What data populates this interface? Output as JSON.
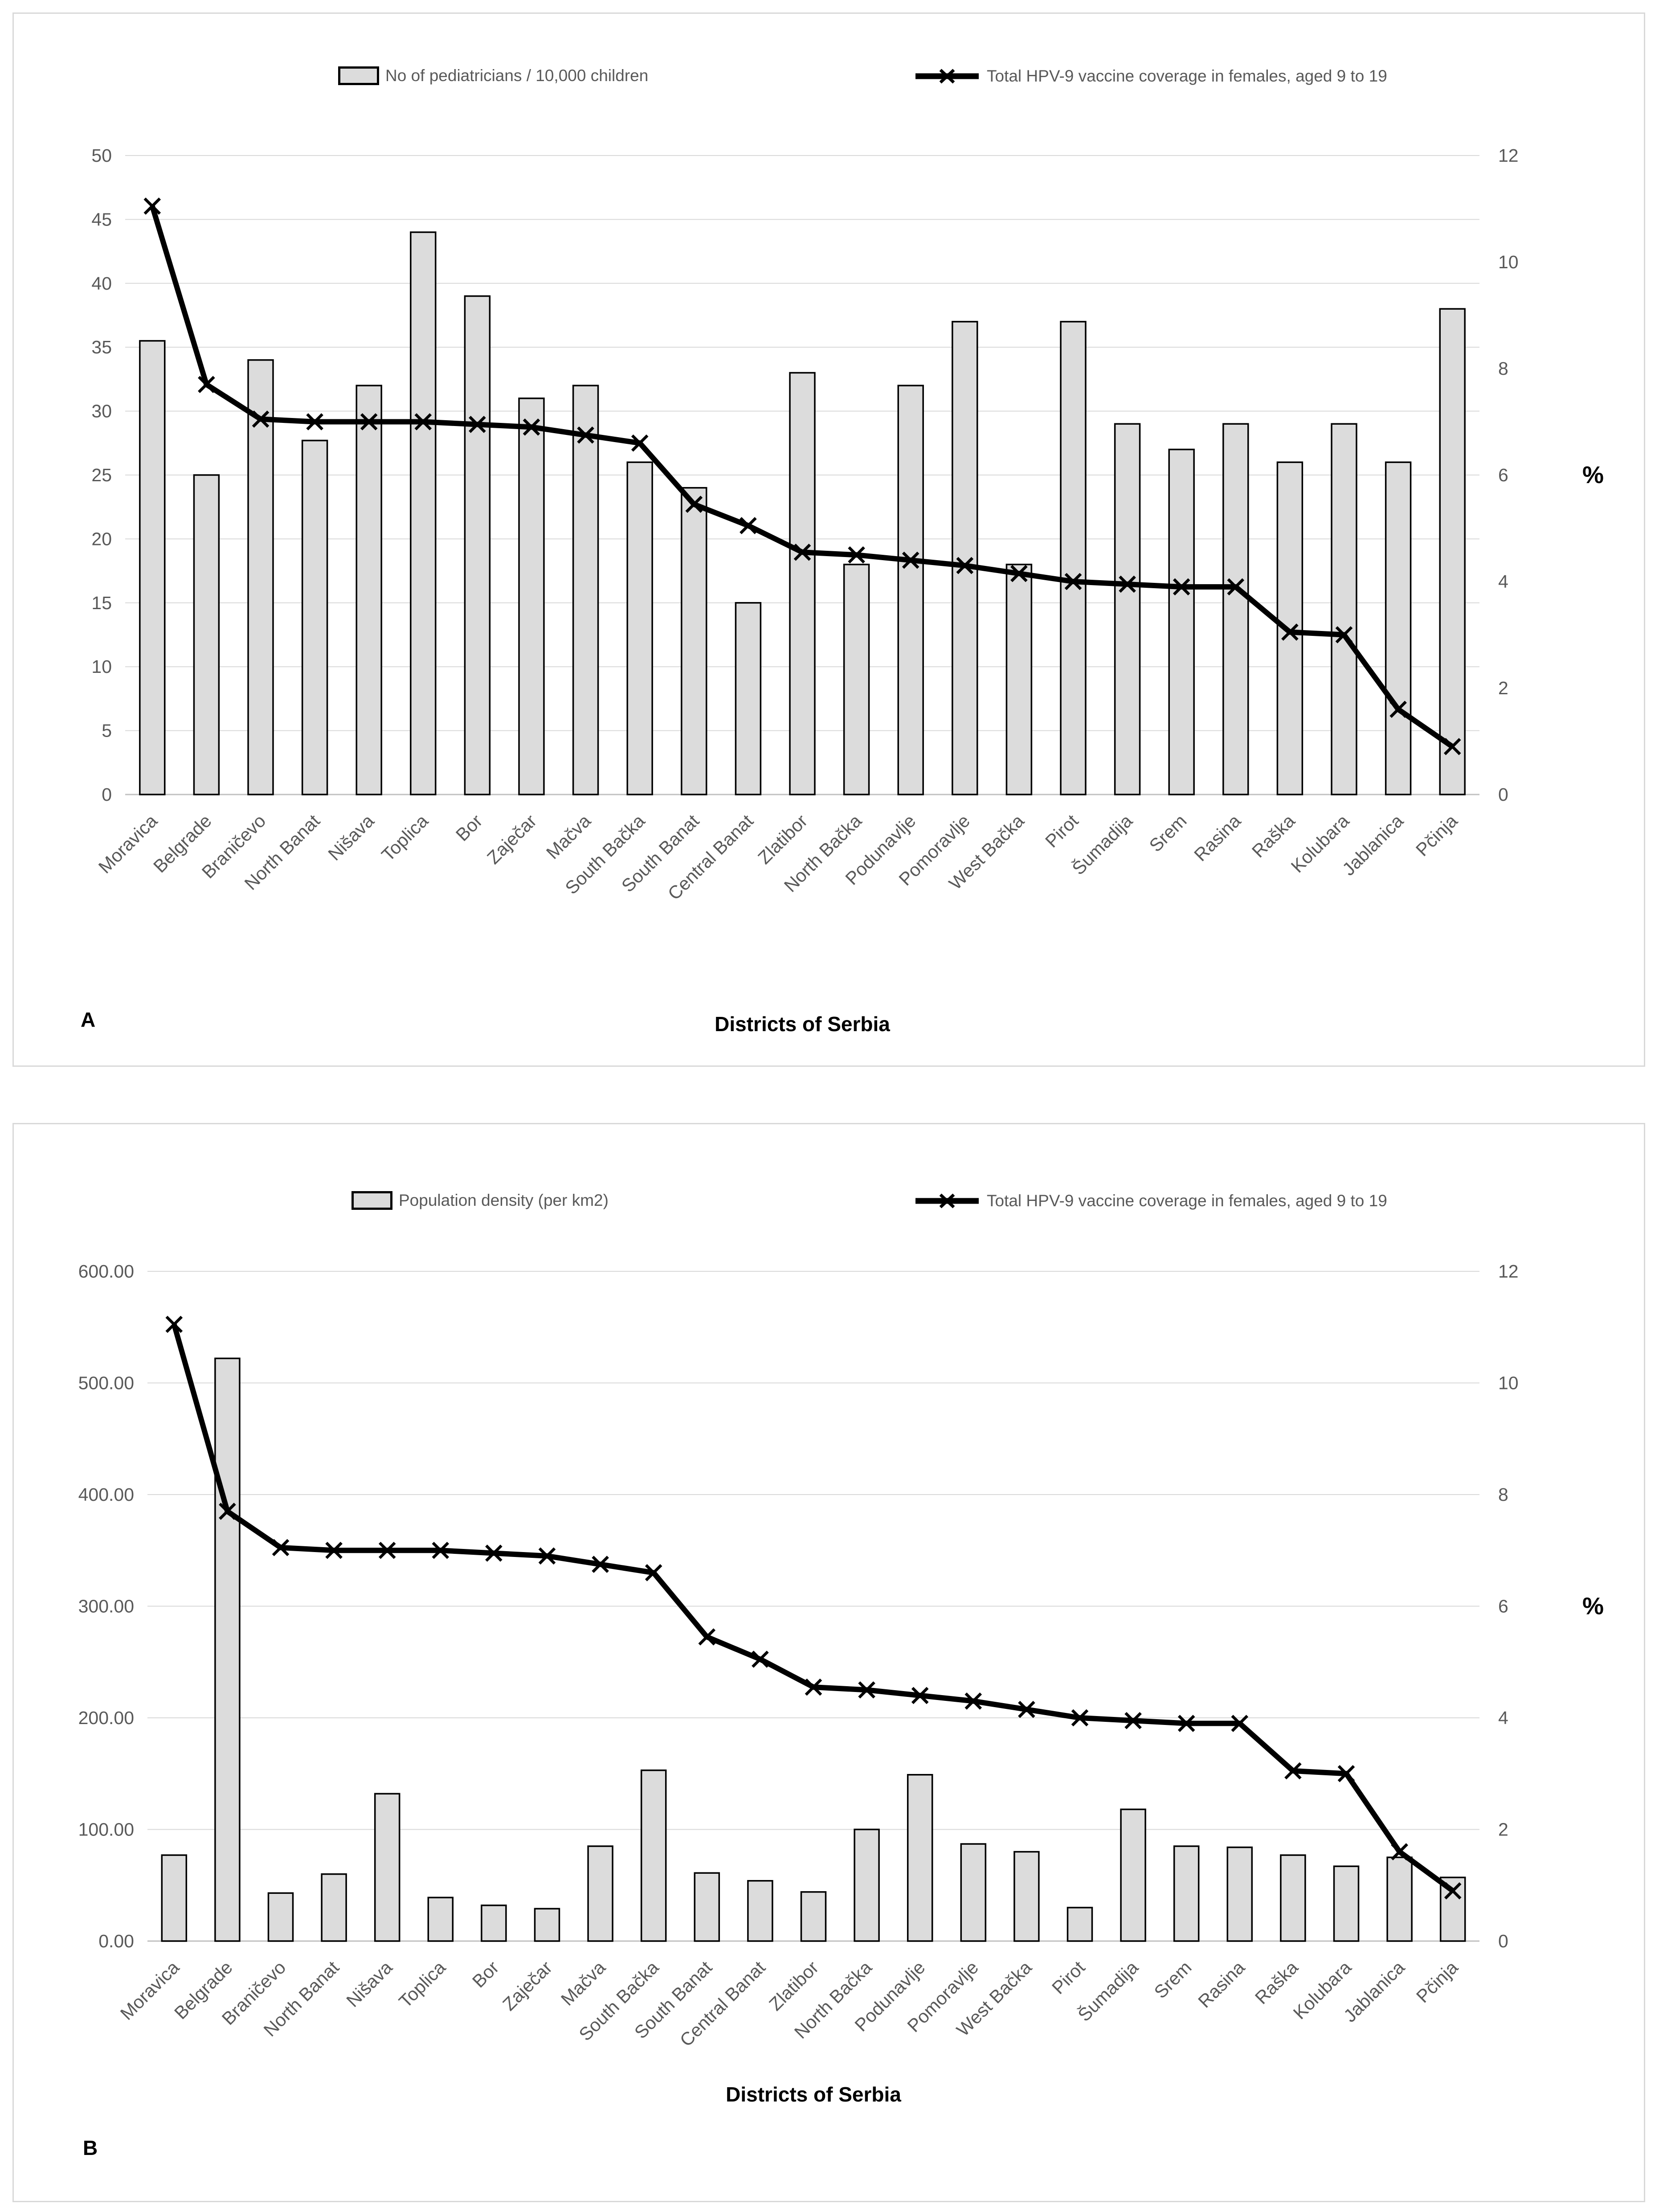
{
  "colors": {
    "background": "#ffffff",
    "panel_border": "#d9d9d9",
    "bar_fill": "#dcdcdc",
    "bar_stroke": "#000000",
    "line": "#000000",
    "grid": "#d9d9d9",
    "axis_line": "#c0c0c0",
    "tick_text": "#595959",
    "title_text": "#000000"
  },
  "chart_data": [
    {
      "id": "A",
      "type": "bar+line",
      "panel_label": "A",
      "xlabel": "Districts of Serbia",
      "grid": true,
      "legend_position": "top",
      "categories": [
        "Moravica",
        "Belgrade",
        "Braničevo",
        "North Banat",
        "Nišava",
        "Toplica",
        "Bor",
        "Zaječar",
        "Mačva",
        "South Bačka",
        "South Banat",
        "Central Banat",
        "Zlatibor",
        "North Bačka",
        "Podunavlje",
        "Pomoravlje",
        "West Bačka",
        "Pirot",
        "Šumadija",
        "Srem",
        "Rasina",
        "Raška",
        "Kolubara",
        "Jablanica",
        "Pčinja"
      ],
      "left_axis": {
        "min": 0,
        "max": 50,
        "step": 5,
        "decimals": 0
      },
      "right_axis": {
        "min": 0,
        "max": 12,
        "step": 2,
        "decimals": 0,
        "title": "%"
      },
      "series": [
        {
          "name": "No of pediatricians / 10,000 children",
          "type": "bar",
          "axis": "left",
          "values": [
            35.5,
            25,
            34,
            27.7,
            32,
            44,
            39,
            31,
            32,
            26,
            24,
            15,
            33,
            18,
            32,
            37,
            18,
            37,
            29,
            27,
            29,
            26,
            29,
            26,
            38
          ]
        },
        {
          "name": "Total HPV-9 vaccine coverage in females, aged 9 to 19",
          "type": "line",
          "axis": "right",
          "values": [
            11.05,
            7.7,
            7.05,
            7.0,
            7.0,
            7.0,
            6.95,
            6.9,
            6.75,
            6.6,
            5.45,
            5.05,
            4.55,
            4.5,
            4.4,
            4.3,
            4.15,
            4.0,
            3.95,
            3.9,
            3.9,
            3.05,
            3.0,
            1.6,
            0.9
          ]
        }
      ]
    },
    {
      "id": "B",
      "type": "bar+line",
      "panel_label": "B",
      "xlabel": "Districts of Serbia",
      "grid": true,
      "legend_position": "top",
      "categories": [
        "Moravica",
        "Belgrade",
        "Braničevo",
        "North Banat",
        "Nišava",
        "Toplica",
        "Bor",
        "Zaječar",
        "Mačva",
        "South Bačka",
        "South Banat",
        "Central Banat",
        "Zlatibor",
        "North Bačka",
        "Podunavlje",
        "Pomoravlje",
        "West Bačka",
        "Pirot",
        "Šumadija",
        "Srem",
        "Rasina",
        "Raška",
        "Kolubara",
        "Jablanica",
        "Pčinja"
      ],
      "left_axis": {
        "min": 0,
        "max": 600,
        "step": 100,
        "decimals": 2
      },
      "right_axis": {
        "min": 0,
        "max": 12,
        "step": 2,
        "decimals": 0,
        "title": "%"
      },
      "series": [
        {
          "name": "Population density (per km2)",
          "type": "bar",
          "axis": "left",
          "values": [
            77,
            522,
            43,
            60,
            132,
            39,
            32,
            29,
            85,
            153,
            61,
            54,
            44,
            100,
            149,
            87,
            80,
            30,
            118,
            85,
            84,
            77,
            67,
            75,
            57
          ]
        },
        {
          "name": "Total HPV-9 vaccine coverage in females, aged 9 to 19",
          "type": "line",
          "axis": "right",
          "values": [
            11.05,
            7.7,
            7.05,
            7.0,
            7.0,
            7.0,
            6.95,
            6.9,
            6.75,
            6.6,
            5.45,
            5.05,
            4.55,
            4.5,
            4.4,
            4.3,
            4.15,
            4.0,
            3.95,
            3.9,
            3.9,
            3.05,
            3.0,
            1.6,
            0.9
          ]
        }
      ]
    }
  ]
}
